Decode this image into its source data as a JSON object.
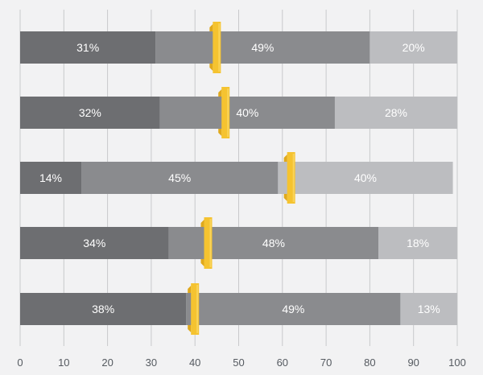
{
  "chart_data": {
    "type": "bar",
    "orientation": "horizontal",
    "stacked": true,
    "xlim": [
      0,
      100
    ],
    "xticks": [
      "0",
      "10",
      "20",
      "30",
      "40",
      "50",
      "60",
      "70",
      "80",
      "90",
      "100"
    ],
    "grid": true,
    "colors": {
      "segments": [
        "#6d6e71",
        "#8a8b8e",
        "#bcbdc0"
      ],
      "marker": "#f5c330",
      "grid": "#c8c9cb",
      "background": "#f2f2f3"
    },
    "rows": [
      {
        "segments": [
          31,
          49,
          20
        ],
        "labels": [
          "31%",
          "49%",
          "20%"
        ],
        "marker": 45
      },
      {
        "segments": [
          32,
          40,
          28
        ],
        "labels": [
          "32%",
          "40%",
          "28%"
        ],
        "marker": 47
      },
      {
        "segments": [
          14,
          45,
          40
        ],
        "labels": [
          "14%",
          "45%",
          "40%"
        ],
        "marker": 62
      },
      {
        "segments": [
          34,
          48,
          18
        ],
        "labels": [
          "34%",
          "48%",
          "18%"
        ],
        "marker": 43
      },
      {
        "segments": [
          38,
          49,
          13
        ],
        "labels": [
          "38%",
          "49%",
          "13%"
        ],
        "marker": 40
      }
    ]
  }
}
